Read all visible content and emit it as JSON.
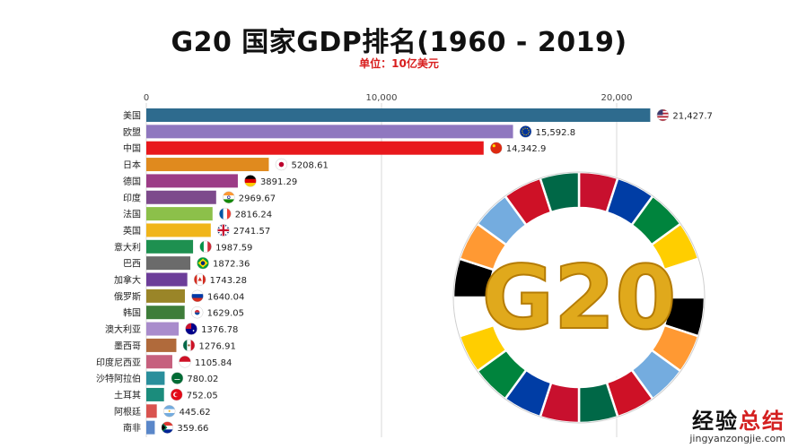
{
  "header": {
    "title": "G20 国家GDP排名(1960 - 2019)",
    "subtitle": "单位：10亿美元"
  },
  "logo": {
    "text": "G20",
    "ring_colors": [
      "#c8102e",
      "#003da5",
      "#00843d",
      "#ffce00",
      "#ffffff",
      "#000000",
      "#ff9933",
      "#74acdf",
      "#ce1126",
      "#006847"
    ]
  },
  "watermark": {
    "main_prefix": "经验",
    "main_suffix": "总结",
    "sub": "jingyanzongjie.com"
  },
  "chart_data": {
    "type": "bar",
    "orientation": "horizontal",
    "title": "G20 国家GDP排名(1960 - 2019)",
    "subtitle": "单位：10亿美元",
    "xlim": [
      0,
      22000
    ],
    "xticks": [
      0,
      10000,
      20000
    ],
    "xtick_labels": [
      "0",
      "10,000",
      "20,000"
    ],
    "grid": true,
    "bars": [
      {
        "category": "美国",
        "value": 21427.7,
        "label": "21,427.7",
        "color": "#2e6b8e",
        "flag": "us-flag-icon"
      },
      {
        "category": "欧盟",
        "value": 15592.8,
        "label": "15,592.8",
        "color": "#8f77bf",
        "flag": "eu-flag-icon"
      },
      {
        "category": "中国",
        "value": 14342.9,
        "label": "14,342.9",
        "color": "#e8181c",
        "flag": "cn-flag-icon"
      },
      {
        "category": "日本",
        "value": 5208.61,
        "label": "5208.61",
        "color": "#e08a1e",
        "flag": "jp-flag-icon"
      },
      {
        "category": "德国",
        "value": 3891.29,
        "label": "3891.29",
        "color": "#9c3b86",
        "flag": "de-flag-icon"
      },
      {
        "category": "印度",
        "value": 2969.67,
        "label": "2969.67",
        "color": "#7d4a8c",
        "flag": "in-flag-icon"
      },
      {
        "category": "法国",
        "value": 2816.24,
        "label": "2816.24",
        "color": "#8cc04a",
        "flag": "fr-flag-icon"
      },
      {
        "category": "英国",
        "value": 2741.57,
        "label": "2741.57",
        "color": "#f0b51a",
        "flag": "gb-flag-icon"
      },
      {
        "category": "意大利",
        "value": 1987.59,
        "label": "1987.59",
        "color": "#1e9050",
        "flag": "it-flag-icon"
      },
      {
        "category": "巴西",
        "value": 1872.36,
        "label": "1872.36",
        "color": "#6b6b6b",
        "flag": "br-flag-icon"
      },
      {
        "category": "加拿大",
        "value": 1743.28,
        "label": "1743.28",
        "color": "#6c3d99",
        "flag": "ca-flag-icon"
      },
      {
        "category": "俄罗斯",
        "value": 1640.04,
        "label": "1640.04",
        "color": "#9a8528",
        "flag": "ru-flag-icon"
      },
      {
        "category": "韩国",
        "value": 1629.05,
        "label": "1629.05",
        "color": "#3e7d3a",
        "flag": "kr-flag-icon"
      },
      {
        "category": "澳大利亚",
        "value": 1376.78,
        "label": "1376.78",
        "color": "#a98ccc",
        "flag": "au-flag-icon"
      },
      {
        "category": "墨西哥",
        "value": 1276.91,
        "label": "1276.91",
        "color": "#b06a3b",
        "flag": "mx-flag-icon"
      },
      {
        "category": "印度尼西亚",
        "value": 1105.84,
        "label": "1105.84",
        "color": "#c6607e",
        "flag": "id-flag-icon"
      },
      {
        "category": "沙特阿拉伯",
        "value": 780.02,
        "label": "780.02",
        "color": "#2a8f9c",
        "flag": "sa-flag-icon"
      },
      {
        "category": "土耳其",
        "value": 752.05,
        "label": "752.05",
        "color": "#1b8c7c",
        "flag": "tr-flag-icon"
      },
      {
        "category": "阿根廷",
        "value": 445.62,
        "label": "445.62",
        "color": "#d9534f",
        "flag": "ar-flag-icon"
      },
      {
        "category": "南非",
        "value": 359.66,
        "label": "359.66",
        "color": "#5a87c9",
        "flag": "za-flag-icon"
      }
    ]
  }
}
